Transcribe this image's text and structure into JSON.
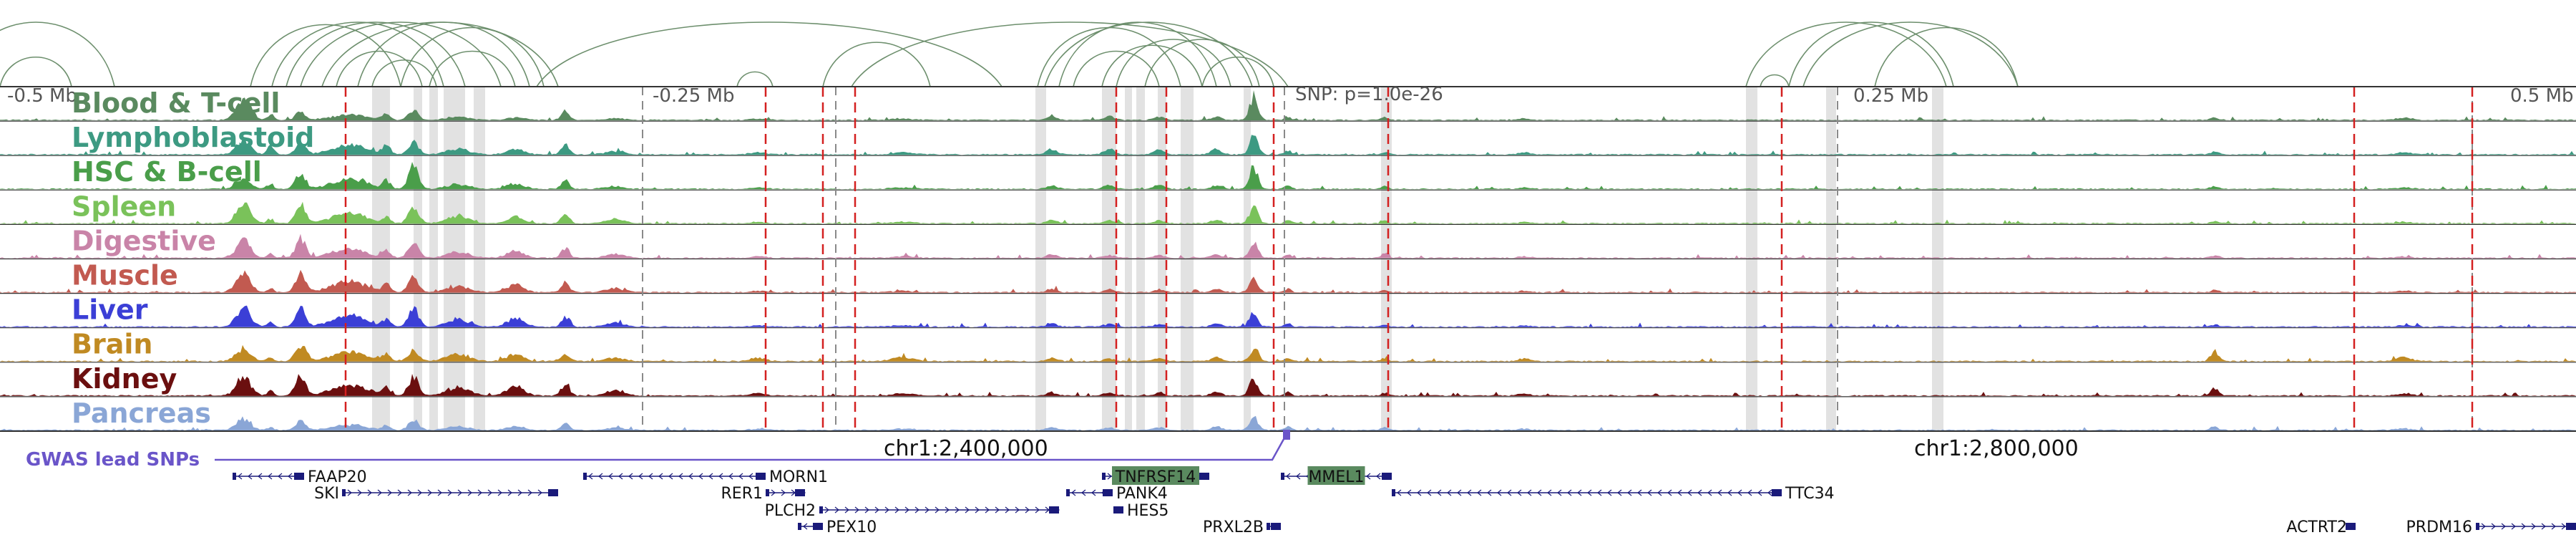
{
  "ruler": {
    "ticks": [
      {
        "label": "-0.5 Mb",
        "offset": -0.5
      },
      {
        "label": "-0.25 Mb",
        "offset": -0.25
      },
      {
        "label": "0.25 Mb",
        "offset": 0.25
      },
      {
        "label": "0.5 Mb",
        "offset": 0.5
      }
    ],
    "snp_readout": "SNP: p=1.0e-26"
  },
  "tracks": [
    {
      "label": "Blood & T-cell",
      "color": "#5a8a5f"
    },
    {
      "label": "Lymphoblastoid",
      "color": "#3d9a82"
    },
    {
      "label": "HSC & B-cell",
      "color": "#4a9e4a"
    },
    {
      "label": "Spleen",
      "color": "#7ac25a"
    },
    {
      "label": "Digestive",
      "color": "#c984a8"
    },
    {
      "label": "Muscle",
      "color": "#c25a50"
    },
    {
      "label": "Liver",
      "color": "#3b3fd6"
    },
    {
      "label": "Brain",
      "color": "#c08a22"
    },
    {
      "label": "Kidney",
      "color": "#6b0f0f"
    },
    {
      "label": "Pancreas",
      "color": "#8aa6d6"
    }
  ],
  "coordinates": [
    {
      "label": "chr1:2,400,000"
    },
    {
      "label": "chr1:2,800,000"
    }
  ],
  "gwas": {
    "label": "GWAS lead SNPs",
    "color": "#6a55c9"
  },
  "genes": [
    {
      "name": "FAAP20",
      "strand": "-",
      "highlight": false
    },
    {
      "name": "SKI",
      "strand": "+",
      "highlight": false
    },
    {
      "name": "MORN1",
      "strand": "-",
      "highlight": false
    },
    {
      "name": "RER1",
      "strand": "+",
      "highlight": false
    },
    {
      "name": "PLCH2",
      "strand": "+",
      "highlight": false
    },
    {
      "name": "PEX10",
      "strand": "-",
      "highlight": false
    },
    {
      "name": "TNFRSF14",
      "strand": "+",
      "highlight": true
    },
    {
      "name": "PANK4",
      "strand": "-",
      "highlight": false
    },
    {
      "name": "HES5",
      "strand": "-",
      "highlight": false
    },
    {
      "name": "PRXL2B",
      "strand": "+",
      "highlight": false
    },
    {
      "name": "MMEL1",
      "strand": "-",
      "highlight": true
    },
    {
      "name": "TTC34",
      "strand": "-",
      "highlight": false
    },
    {
      "name": "ACTRT2",
      "strand": "+",
      "highlight": false
    },
    {
      "name": "PRDM16",
      "strand": "+",
      "highlight": false
    }
  ],
  "colors": {
    "loop": "#6d8f6d",
    "highlight_bar": "#d8d8d8",
    "red_marker": "#d42020",
    "gray_marker": "#8a8a8a",
    "gene": "#1a1a7a",
    "gene_highlight_bg": "#5a8a5f"
  }
}
